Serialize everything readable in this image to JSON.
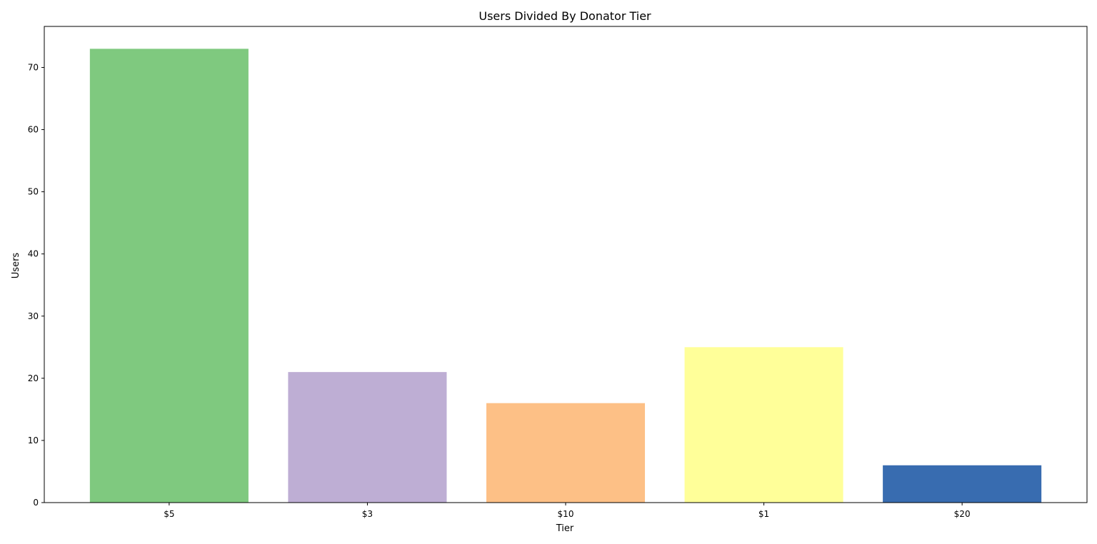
{
  "chart_data": {
    "type": "bar",
    "title": "Users Divided By Donator Tier",
    "xlabel": "Tier",
    "ylabel": "Users",
    "categories": [
      "$5",
      "$3",
      "$10",
      "$1",
      "$20"
    ],
    "values": [
      73,
      21,
      16,
      25,
      6
    ],
    "colors": [
      "#7fc97f",
      "#beaed4",
      "#fdc086",
      "#ffff99",
      "#386cb0"
    ],
    "ylim": [
      0,
      76.6
    ],
    "yticks": [
      0,
      10,
      20,
      30,
      40,
      50,
      60,
      70
    ],
    "grid": false,
    "legend": "none"
  }
}
